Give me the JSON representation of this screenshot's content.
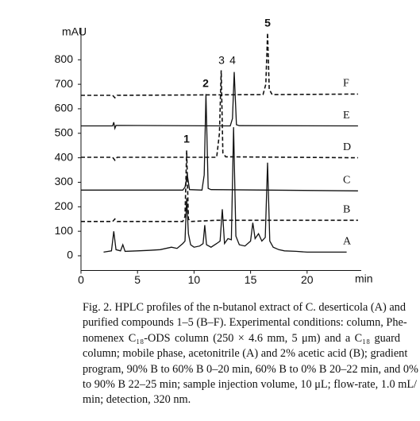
{
  "chart_data": {
    "type": "line",
    "ylabel": "mAU",
    "xlabel": "min",
    "xlim": [
      0,
      25
    ],
    "xticks": [
      0,
      5,
      10,
      15,
      20
    ],
    "ylim": [
      -60,
      950
    ],
    "yticks": [
      0,
      100,
      200,
      300,
      400,
      500,
      600,
      700,
      800
    ],
    "annotations": [
      "1",
      "2",
      "3",
      "4",
      "5"
    ],
    "series": [
      {
        "name": "A",
        "color": "#111111",
        "line_style": "solid",
        "x": [
          2,
          2.7,
          2.9,
          3.1,
          3.5,
          3.7,
          3.9,
          5,
          6,
          7,
          8,
          8.5,
          9,
          9.2,
          9.35,
          9.5,
          9.7,
          10,
          10.5,
          10.8,
          10.95,
          11.1,
          11.5,
          12,
          12.3,
          12.5,
          12.7,
          13,
          13.3,
          13.5,
          13.7,
          14,
          14.5,
          15,
          15.2,
          15.4,
          15.7,
          16,
          16.3,
          16.5,
          16.7,
          17,
          17.5,
          18,
          19,
          20,
          21,
          22,
          23,
          23.5
        ],
        "values": [
          15,
          20,
          100,
          25,
          20,
          45,
          18,
          20,
          22,
          25,
          35,
          30,
          50,
          60,
          235,
          90,
          45,
          35,
          40,
          50,
          125,
          45,
          35,
          50,
          60,
          190,
          50,
          70,
          65,
          525,
          80,
          45,
          40,
          60,
          135,
          70,
          90,
          60,
          75,
          380,
          60,
          35,
          25,
          20,
          18,
          15,
          15,
          15,
          15,
          15
        ]
      },
      {
        "name": "B",
        "color": "#111111",
        "line_style": "dashed",
        "x": [
          0,
          2.8,
          3,
          3.2,
          9,
          9.2,
          9.35,
          9.5,
          9.7,
          12,
          24.5
        ],
        "values": [
          140,
          140,
          150,
          140,
          140,
          160,
          430,
          150,
          140,
          145,
          145
        ]
      },
      {
        "name": "C",
        "color": "#111111",
        "line_style": "solid",
        "x": [
          0,
          9,
          9.2,
          9.4,
          9.6,
          10.7,
          10.9,
          11.05,
          11.25,
          11.5,
          24.5
        ],
        "values": [
          268,
          268,
          280,
          330,
          270,
          268,
          330,
          660,
          275,
          270,
          265
        ]
      },
      {
        "name": "D",
        "color": "#111111",
        "line_style": "dashed",
        "x": [
          0,
          2.8,
          3,
          3.2,
          12,
          12.25,
          12.4,
          12.55,
          12.8,
          24.5
        ],
        "values": [
          402,
          402,
          390,
          402,
          402,
          500,
          757,
          420,
          404,
          400
        ]
      },
      {
        "name": "E",
        "color": "#111111",
        "line_style": "solid",
        "x": [
          0,
          2.8,
          2.9,
          3.0,
          3.1,
          13.2,
          13.4,
          13.55,
          13.75,
          14,
          24.5
        ],
        "values": [
          530,
          530,
          545,
          520,
          532,
          530,
          560,
          750,
          535,
          531,
          530
        ]
      },
      {
        "name": "F",
        "color": "#111111",
        "line_style": "dashed",
        "x": [
          0,
          2.8,
          3,
          3.2,
          16.1,
          16.35,
          16.5,
          16.65,
          16.9,
          24.5
        ],
        "values": [
          655,
          655,
          645,
          655,
          658,
          700,
          910,
          680,
          658,
          660
        ]
      }
    ]
  },
  "caption": [
    "Fig. 2. HPLC profiles of the n-butanol extract of C. deserticola (A) and",
    "purified compounds 1–5 (B–F). Experimental conditions: column, Phe-",
    "nomenex C₁₈-ODS column (250 × 4.6 mm, 5 μm) and a C₁₈ guard",
    "column; mobile phase, acetonitrile (A) and 2% acetic acid (B); gradient",
    "program, 90% B to 60% B 0–20 min, 60% B to 0% B 20–22 min, and 0% B",
    "to 90% B 22–25 min; sample injection volume, 10 μL; flow-rate, 1.0 mL/",
    "min; detection, 320 nm."
  ]
}
